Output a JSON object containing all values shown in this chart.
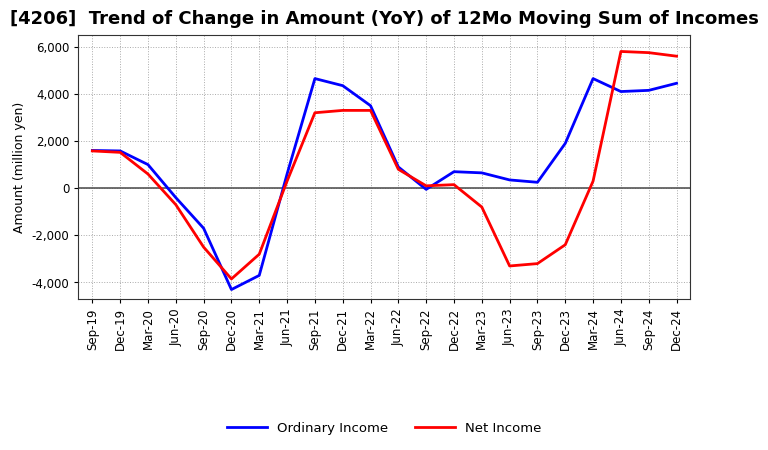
{
  "title": "[4206]  Trend of Change in Amount (YoY) of 12Mo Moving Sum of Incomes",
  "ylabel": "Amount (million yen)",
  "x_labels": [
    "Sep-19",
    "Dec-19",
    "Mar-20",
    "Jun-20",
    "Sep-20",
    "Dec-20",
    "Mar-21",
    "Jun-21",
    "Sep-21",
    "Dec-21",
    "Mar-22",
    "Jun-22",
    "Sep-22",
    "Dec-22",
    "Mar-23",
    "Jun-23",
    "Sep-23",
    "Dec-23",
    "Mar-24",
    "Jun-24",
    "Sep-24",
    "Dec-24"
  ],
  "ordinary_income_full": [
    1600,
    1580,
    1000,
    -400,
    -1700,
    -4300,
    -3700,
    600,
    4650,
    4350,
    3500,
    900,
    -50,
    700,
    650,
    350,
    250,
    1900,
    4650,
    4100,
    4150,
    4450
  ],
  "net_income_full": [
    1580,
    1520,
    600,
    -700,
    -2500,
    -3850,
    -2800,
    300,
    3200,
    3300,
    3300,
    800,
    100,
    150,
    -800,
    -3300,
    -3200,
    -2400,
    300,
    5800,
    5750,
    5600
  ],
  "ylim": [
    -4700,
    6500
  ],
  "yticks": [
    -4000,
    -2000,
    0,
    2000,
    4000,
    6000
  ],
  "ordinary_color": "#0000FF",
  "net_color": "#FF0000",
  "background_color": "#FFFFFF",
  "grid_color": "#AAAAAA",
  "title_fontsize": 13,
  "label_fontsize": 9,
  "tick_fontsize": 8.5,
  "legend_fontsize": 9.5
}
